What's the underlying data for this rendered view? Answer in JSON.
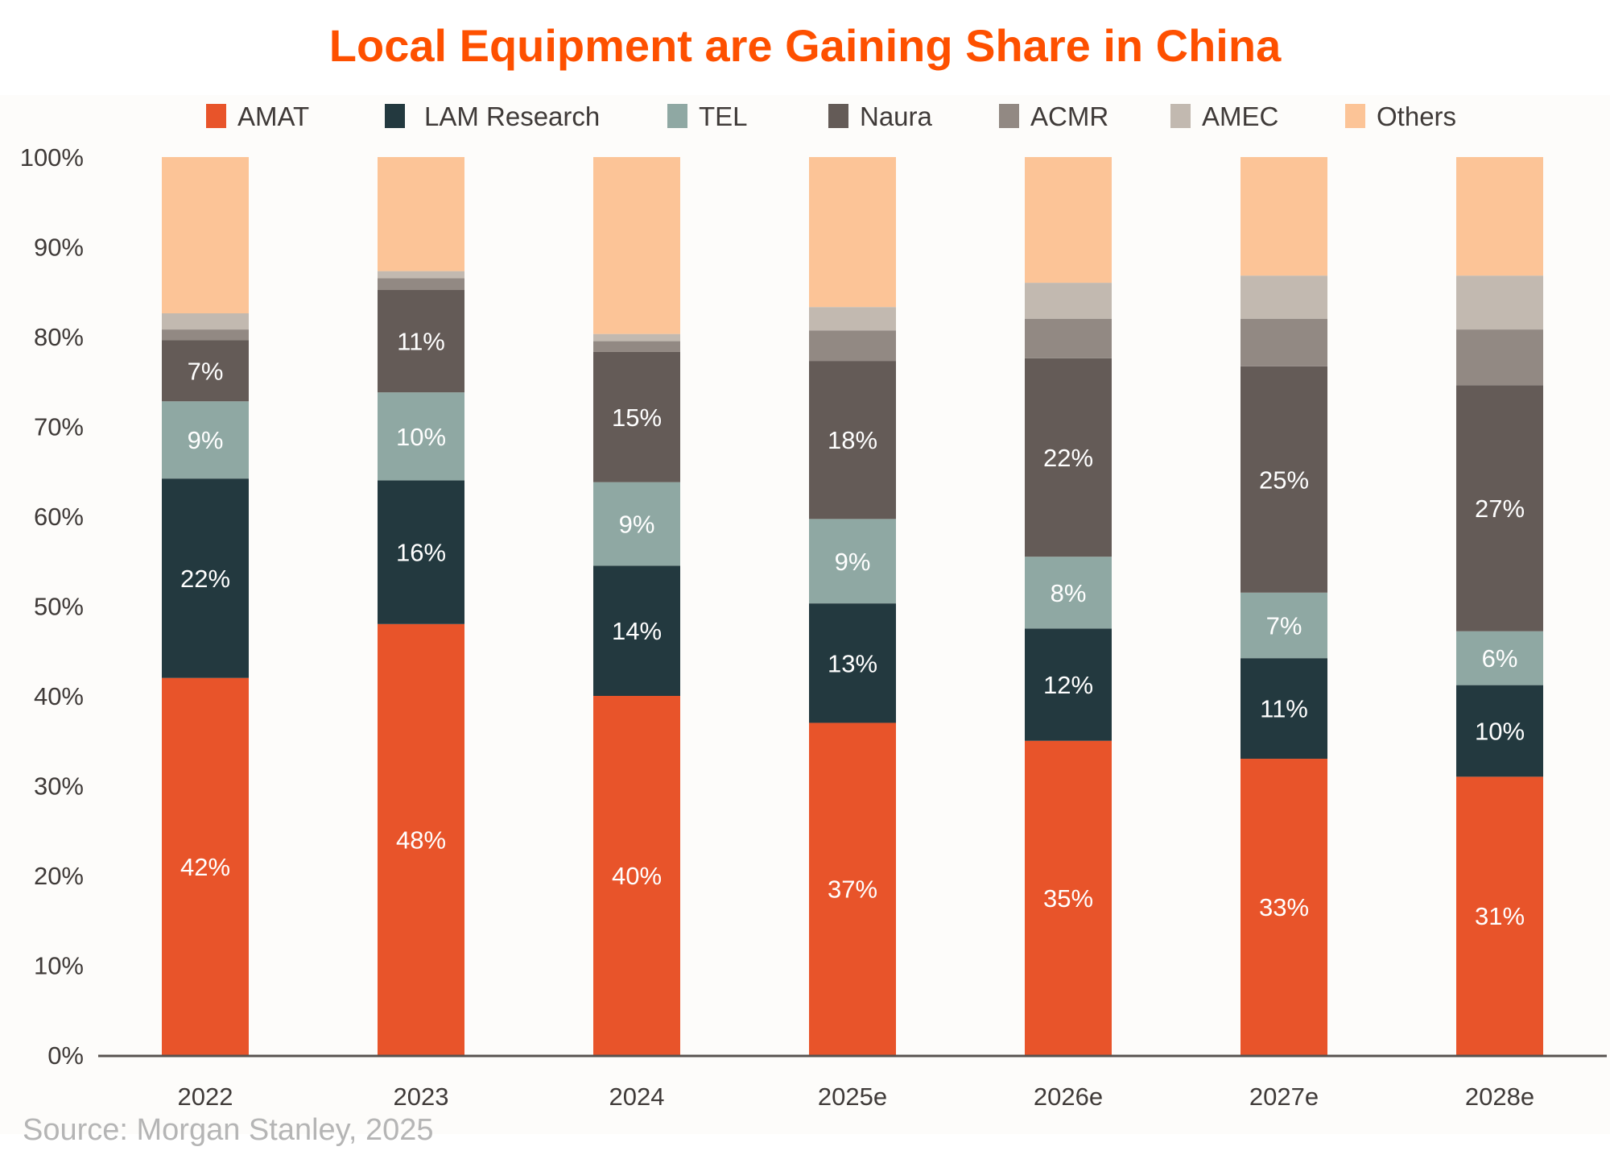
{
  "chart_data": {
    "type": "bar",
    "stacked": true,
    "title": "Local Equipment are Gaining Share in China",
    "source": "Source: Morgan Stanley, 2025",
    "xlabel": "",
    "ylabel": "",
    "ylim": [
      0,
      100
    ],
    "yticks": [
      "0%",
      "10%",
      "20%",
      "30%",
      "40%",
      "50%",
      "60%",
      "70%",
      "80%",
      "90%",
      "100%"
    ],
    "legend_position": "top",
    "categories": [
      "2022",
      "2023",
      "2024",
      "2025e",
      "2026e",
      "2027e",
      "2028e"
    ],
    "series": [
      {
        "name": "AMAT",
        "color": "#e8542a",
        "values": [
          42,
          48,
          40,
          37,
          35,
          33,
          31
        ],
        "labels": [
          "42%",
          "48%",
          "40%",
          "37%",
          "35%",
          "33%",
          "31%"
        ]
      },
      {
        "name": "LAM Research",
        "color": "#23393f",
        "values": [
          22.2,
          16,
          14.5,
          13.3,
          12.5,
          11.2,
          10.2
        ],
        "labels": [
          "22%",
          "16%",
          "14%",
          "13%",
          "12%",
          "11%",
          "10%"
        ]
      },
      {
        "name": "TEL",
        "color": "#8fa8a3",
        "values": [
          8.6,
          9.8,
          9.3,
          9.4,
          8,
          7.3,
          6
        ],
        "labels": [
          "9%",
          "10%",
          "9%",
          "9%",
          "8%",
          "7%",
          "6%"
        ]
      },
      {
        "name": "Naura",
        "color": "#645b57",
        "values": [
          6.8,
          11.4,
          14.5,
          17.6,
          22.1,
          25.2,
          27.4
        ],
        "labels": [
          "7%",
          "11%",
          "15%",
          "18%",
          "22%",
          "25%",
          "27%"
        ]
      },
      {
        "name": "ACMR",
        "color": "#928983",
        "values": [
          1.2,
          1.3,
          1.2,
          3.4,
          4.4,
          5.3,
          6.2
        ],
        "labels": [
          "",
          "",
          "",
          "",
          "",
          "",
          ""
        ]
      },
      {
        "name": "AMEC",
        "color": "#c2b9b0",
        "values": [
          1.8,
          0.8,
          0.8,
          2.6,
          4,
          4.8,
          6
        ],
        "labels": [
          "",
          "",
          "",
          "",
          "",
          "",
          ""
        ]
      },
      {
        "name": "Others",
        "color": "#fcc497",
        "values": [
          17.4,
          12.7,
          19.7,
          16.7,
          14,
          13.2,
          13.2
        ],
        "labels": [
          "",
          "",
          "",
          "",
          "",
          "",
          ""
        ]
      }
    ]
  }
}
